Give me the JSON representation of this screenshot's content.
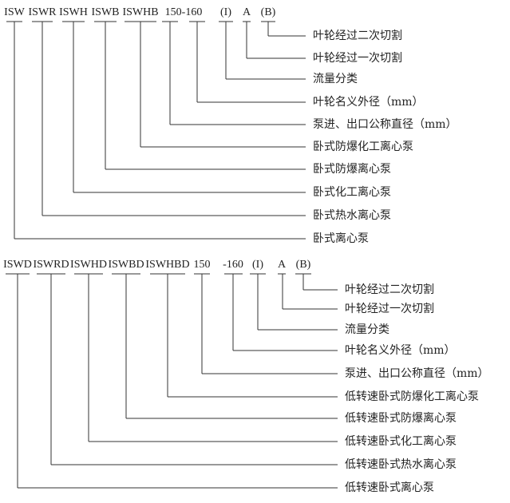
{
  "diagrams": [
    {
      "codes": [
        "ISW",
        "ISWR",
        "ISWH",
        "ISWB",
        "ISWHB",
        "150-160",
        "(I)",
        "A",
        "(B)"
      ],
      "labels": [
        "叶轮经过二次切割",
        "叶轮经过一次切割",
        "流量分类",
        "叶轮名义外径（mm）",
        "泵进、出口公称直径（mm）",
        "卧式防爆化工离心泵",
        "卧式防爆离心泵",
        "卧式化工离心泵",
        "卧式热水离心泵",
        "卧式离心泵"
      ]
    },
    {
      "codes": [
        "ISWD",
        "ISWRD",
        "ISWHD",
        "ISWBD",
        "ISWHBD",
        "150",
        "-160",
        "(I)",
        "A",
        "(B)"
      ],
      "labels": [
        "叶轮经过二次切割",
        "叶轮经过一次切割",
        "流量分类",
        "叶轮名义外径（mm）",
        "泵进、出口公称直径（mm）",
        "低转速卧式防爆化工离心泵",
        "低转速卧式防爆离心泵",
        "低转速卧式化工离心泵",
        "低转速卧式热水离心泵",
        "低转速卧式离心泵"
      ]
    }
  ]
}
